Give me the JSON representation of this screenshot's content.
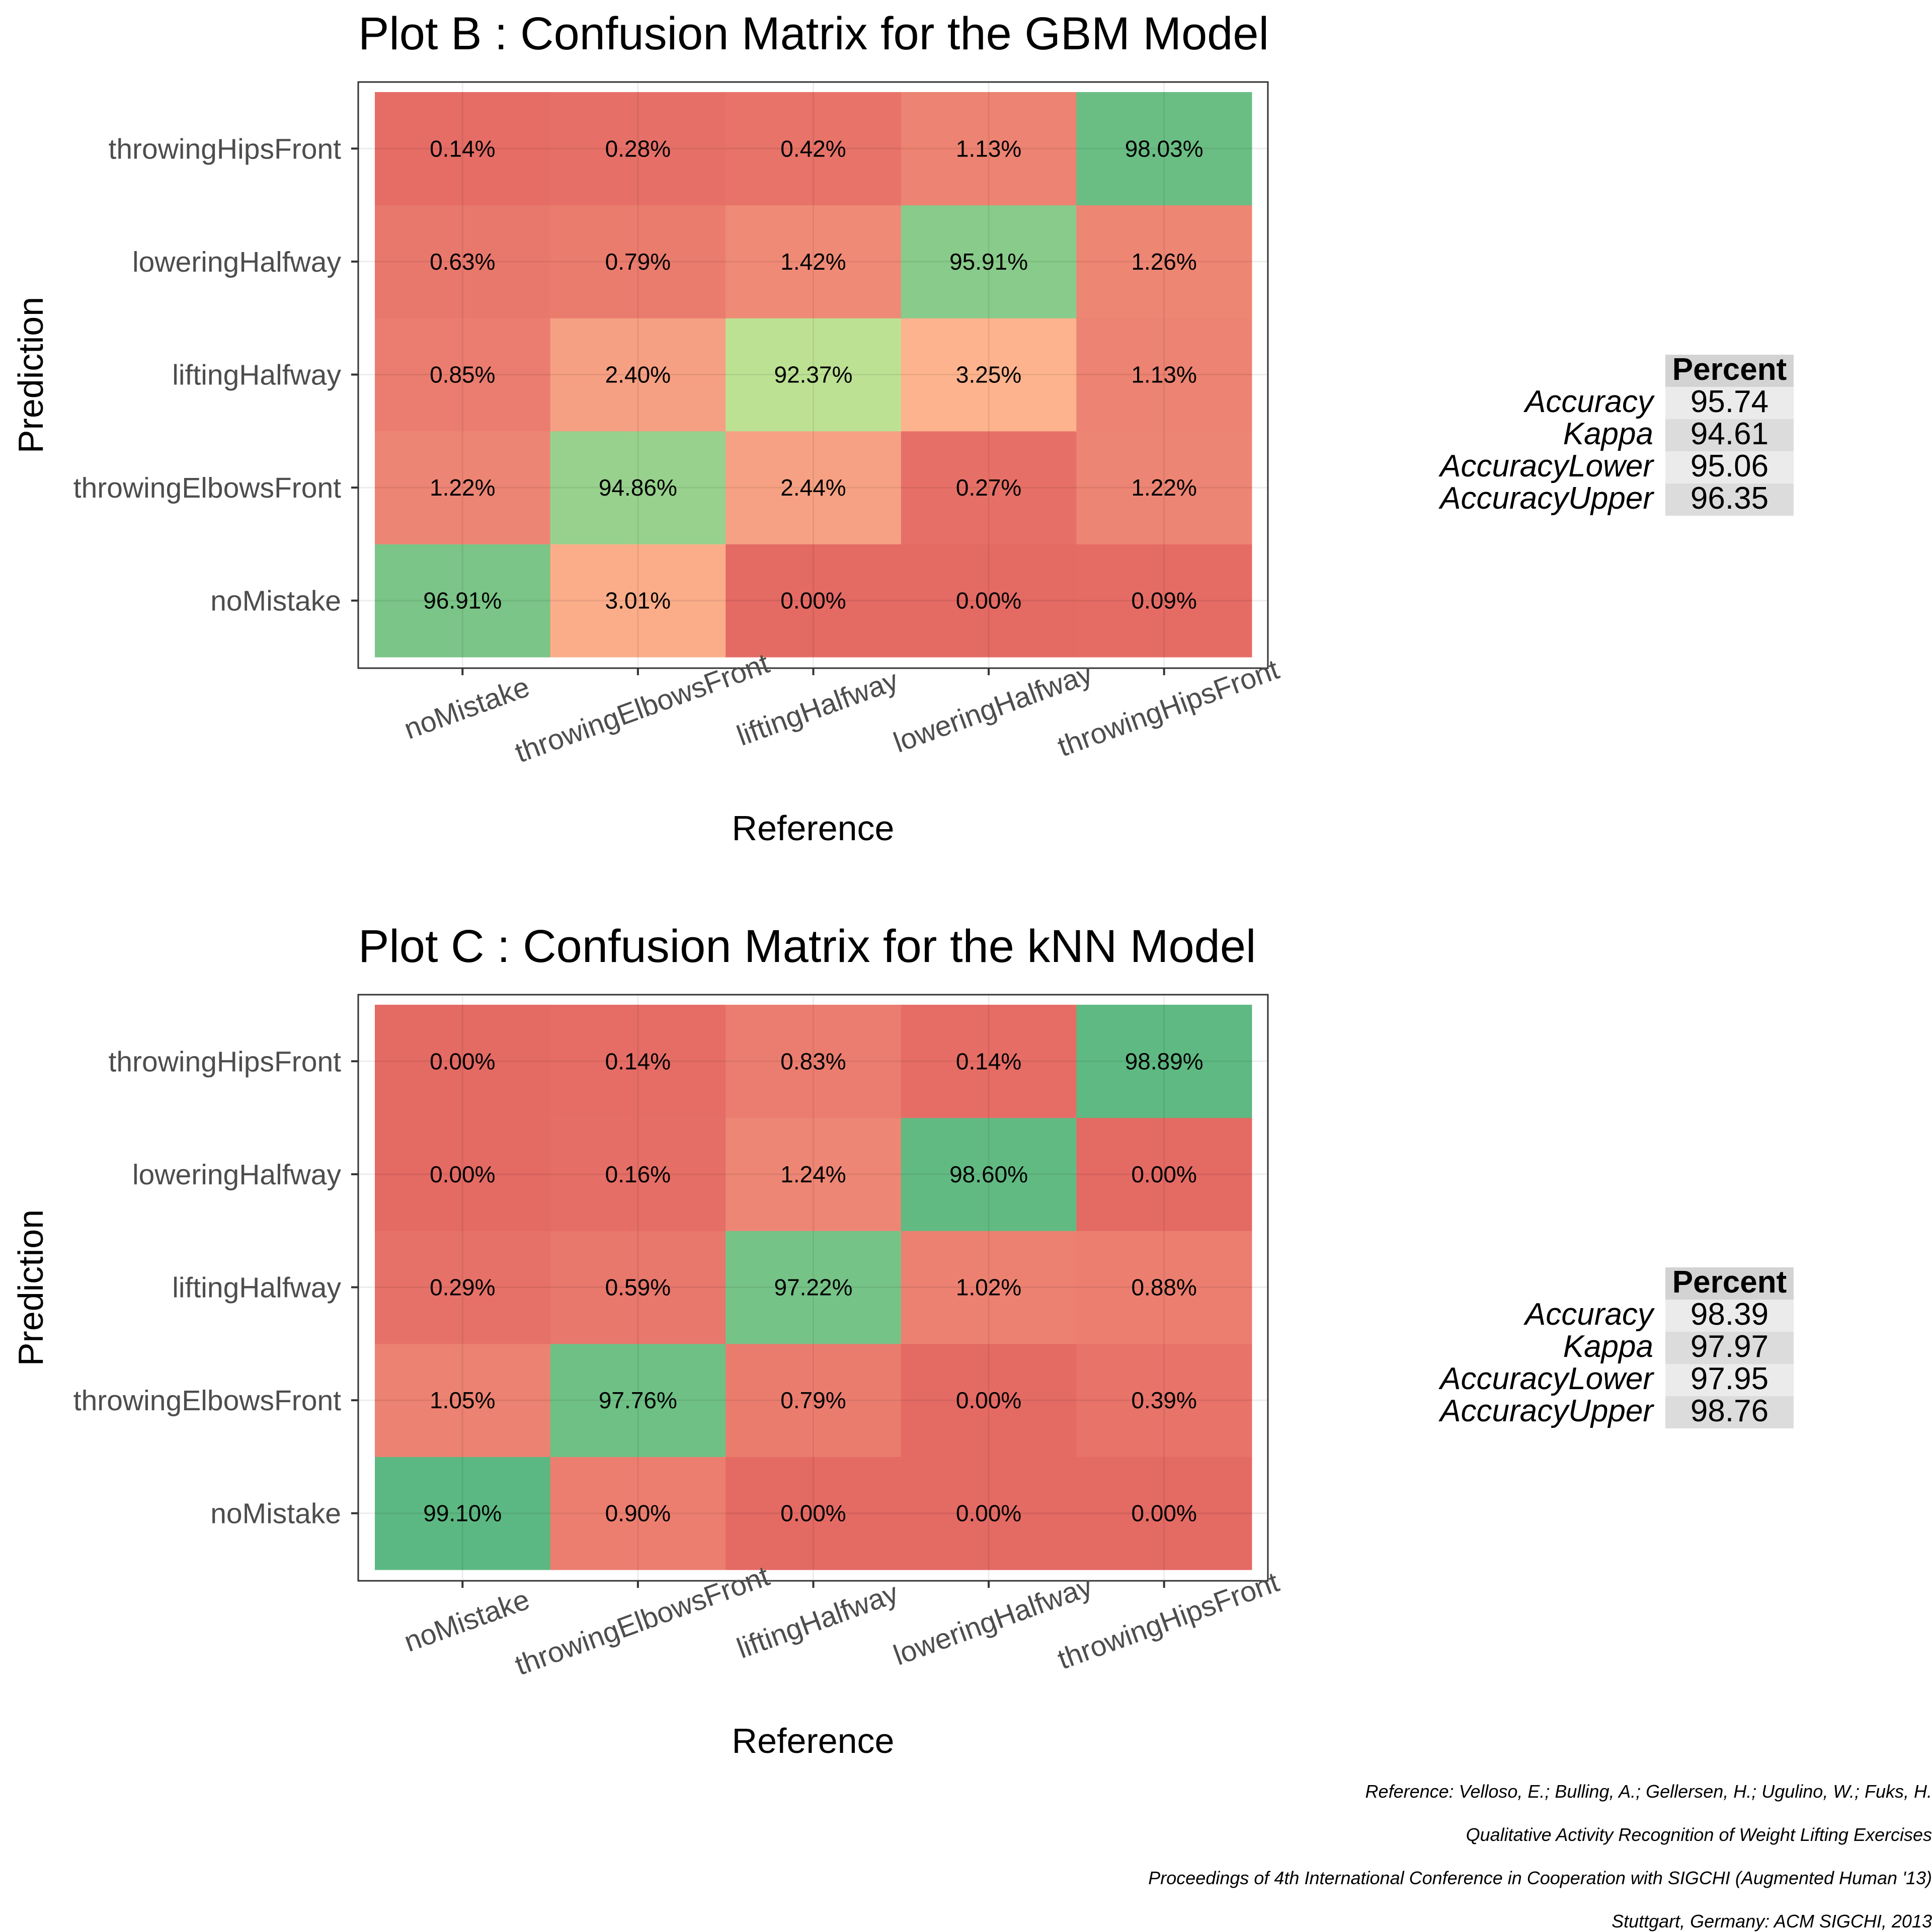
{
  "chart_data": [
    {
      "type": "heatmap",
      "title": "Plot B : Confusion Matrix for the GBM Model",
      "xlabel": "Reference",
      "ylabel": "Prediction",
      "x_categories": [
        "noMistake",
        "throwingElbowsFront",
        "liftingHalfway",
        "loweringHalfway",
        "throwingHipsFront"
      ],
      "y_categories": [
        "noMistake",
        "throwingElbowsFront",
        "liftingHalfway",
        "loweringHalfway",
        "throwingHipsFront"
      ],
      "values": [
        [
          96.91,
          3.01,
          0.0,
          0.0,
          0.09
        ],
        [
          1.22,
          94.86,
          2.44,
          0.27,
          1.22
        ],
        [
          0.85,
          2.4,
          92.37,
          3.25,
          1.13
        ],
        [
          0.63,
          0.79,
          1.42,
          95.91,
          1.26
        ],
        [
          0.14,
          0.28,
          0.42,
          1.13,
          98.03
        ]
      ],
      "labels": [
        [
          "96.91%",
          "3.01%",
          "0.00%",
          "0.00%",
          "0.09%"
        ],
        [
          "1.22%",
          "94.86%",
          "2.44%",
          "0.27%",
          "1.22%"
        ],
        [
          "0.85%",
          "2.40%",
          "92.37%",
          "3.25%",
          "1.13%"
        ],
        [
          "0.63%",
          "0.79%",
          "1.42%",
          "95.91%",
          "1.26%"
        ],
        [
          "0.14%",
          "0.28%",
          "0.42%",
          "1.13%",
          "98.03%"
        ]
      ],
      "grid": true,
      "stats_table": {
        "header": "Percent",
        "rows": [
          {
            "name": "Accuracy",
            "value": "95.74"
          },
          {
            "name": "Kappa",
            "value": "94.61"
          },
          {
            "name": "AccuracyLower",
            "value": "95.06"
          },
          {
            "name": "AccuracyUpper",
            "value": "96.35"
          }
        ]
      }
    },
    {
      "type": "heatmap",
      "title": "Plot C : Confusion Matrix for the kNN Model",
      "xlabel": "Reference",
      "ylabel": "Prediction",
      "x_categories": [
        "noMistake",
        "throwingElbowsFront",
        "liftingHalfway",
        "loweringHalfway",
        "throwingHipsFront"
      ],
      "y_categories": [
        "noMistake",
        "throwingElbowsFront",
        "liftingHalfway",
        "loweringHalfway",
        "throwingHipsFront"
      ],
      "values": [
        [
          99.1,
          0.9,
          0.0,
          0.0,
          0.0
        ],
        [
          1.05,
          97.76,
          0.79,
          0.0,
          0.39
        ],
        [
          0.29,
          0.59,
          97.22,
          1.02,
          0.88
        ],
        [
          0.0,
          0.16,
          1.24,
          98.6,
          0.0
        ],
        [
          0.0,
          0.14,
          0.83,
          0.14,
          98.89
        ]
      ],
      "labels": [
        [
          "99.10%",
          "0.90%",
          "0.00%",
          "0.00%",
          "0.00%"
        ],
        [
          "1.05%",
          "97.76%",
          "0.79%",
          "0.00%",
          "0.39%"
        ],
        [
          "0.29%",
          "0.59%",
          "97.22%",
          "1.02%",
          "0.88%"
        ],
        [
          "0.00%",
          "0.16%",
          "1.24%",
          "98.60%",
          "0.00%"
        ],
        [
          "0.00%",
          "0.14%",
          "0.83%",
          "0.14%",
          "98.89%"
        ]
      ],
      "grid": true,
      "stats_table": {
        "header": "Percent",
        "rows": [
          {
            "name": "Accuracy",
            "value": "98.39"
          },
          {
            "name": "Kappa",
            "value": "97.97"
          },
          {
            "name": "AccuracyLower",
            "value": "97.95"
          },
          {
            "name": "AccuracyUpper",
            "value": "98.76"
          }
        ]
      }
    }
  ],
  "reference": [
    "Reference: Velloso, E.; Bulling, A.; Gellersen, H.; Ugulino, W.; Fuks, H.",
    "Qualitative Activity Recognition of Weight Lifting Exercises",
    "Proceedings of 4th International Conference in Cooperation with SIGCHI (Augmented Human '13)",
    "Stuttgart, Germany: ACM SIGCHI, 2013"
  ],
  "colors": {
    "high": "#5cb882",
    "mid_green": "#c2e394",
    "peach": "#fdb48e",
    "low": "#e46a64",
    "panel_border": "#333333",
    "table_header_bg": "#d3d3d3",
    "table_row_light": "#ebebeb",
    "table_row_dark": "#dcdcdc"
  }
}
